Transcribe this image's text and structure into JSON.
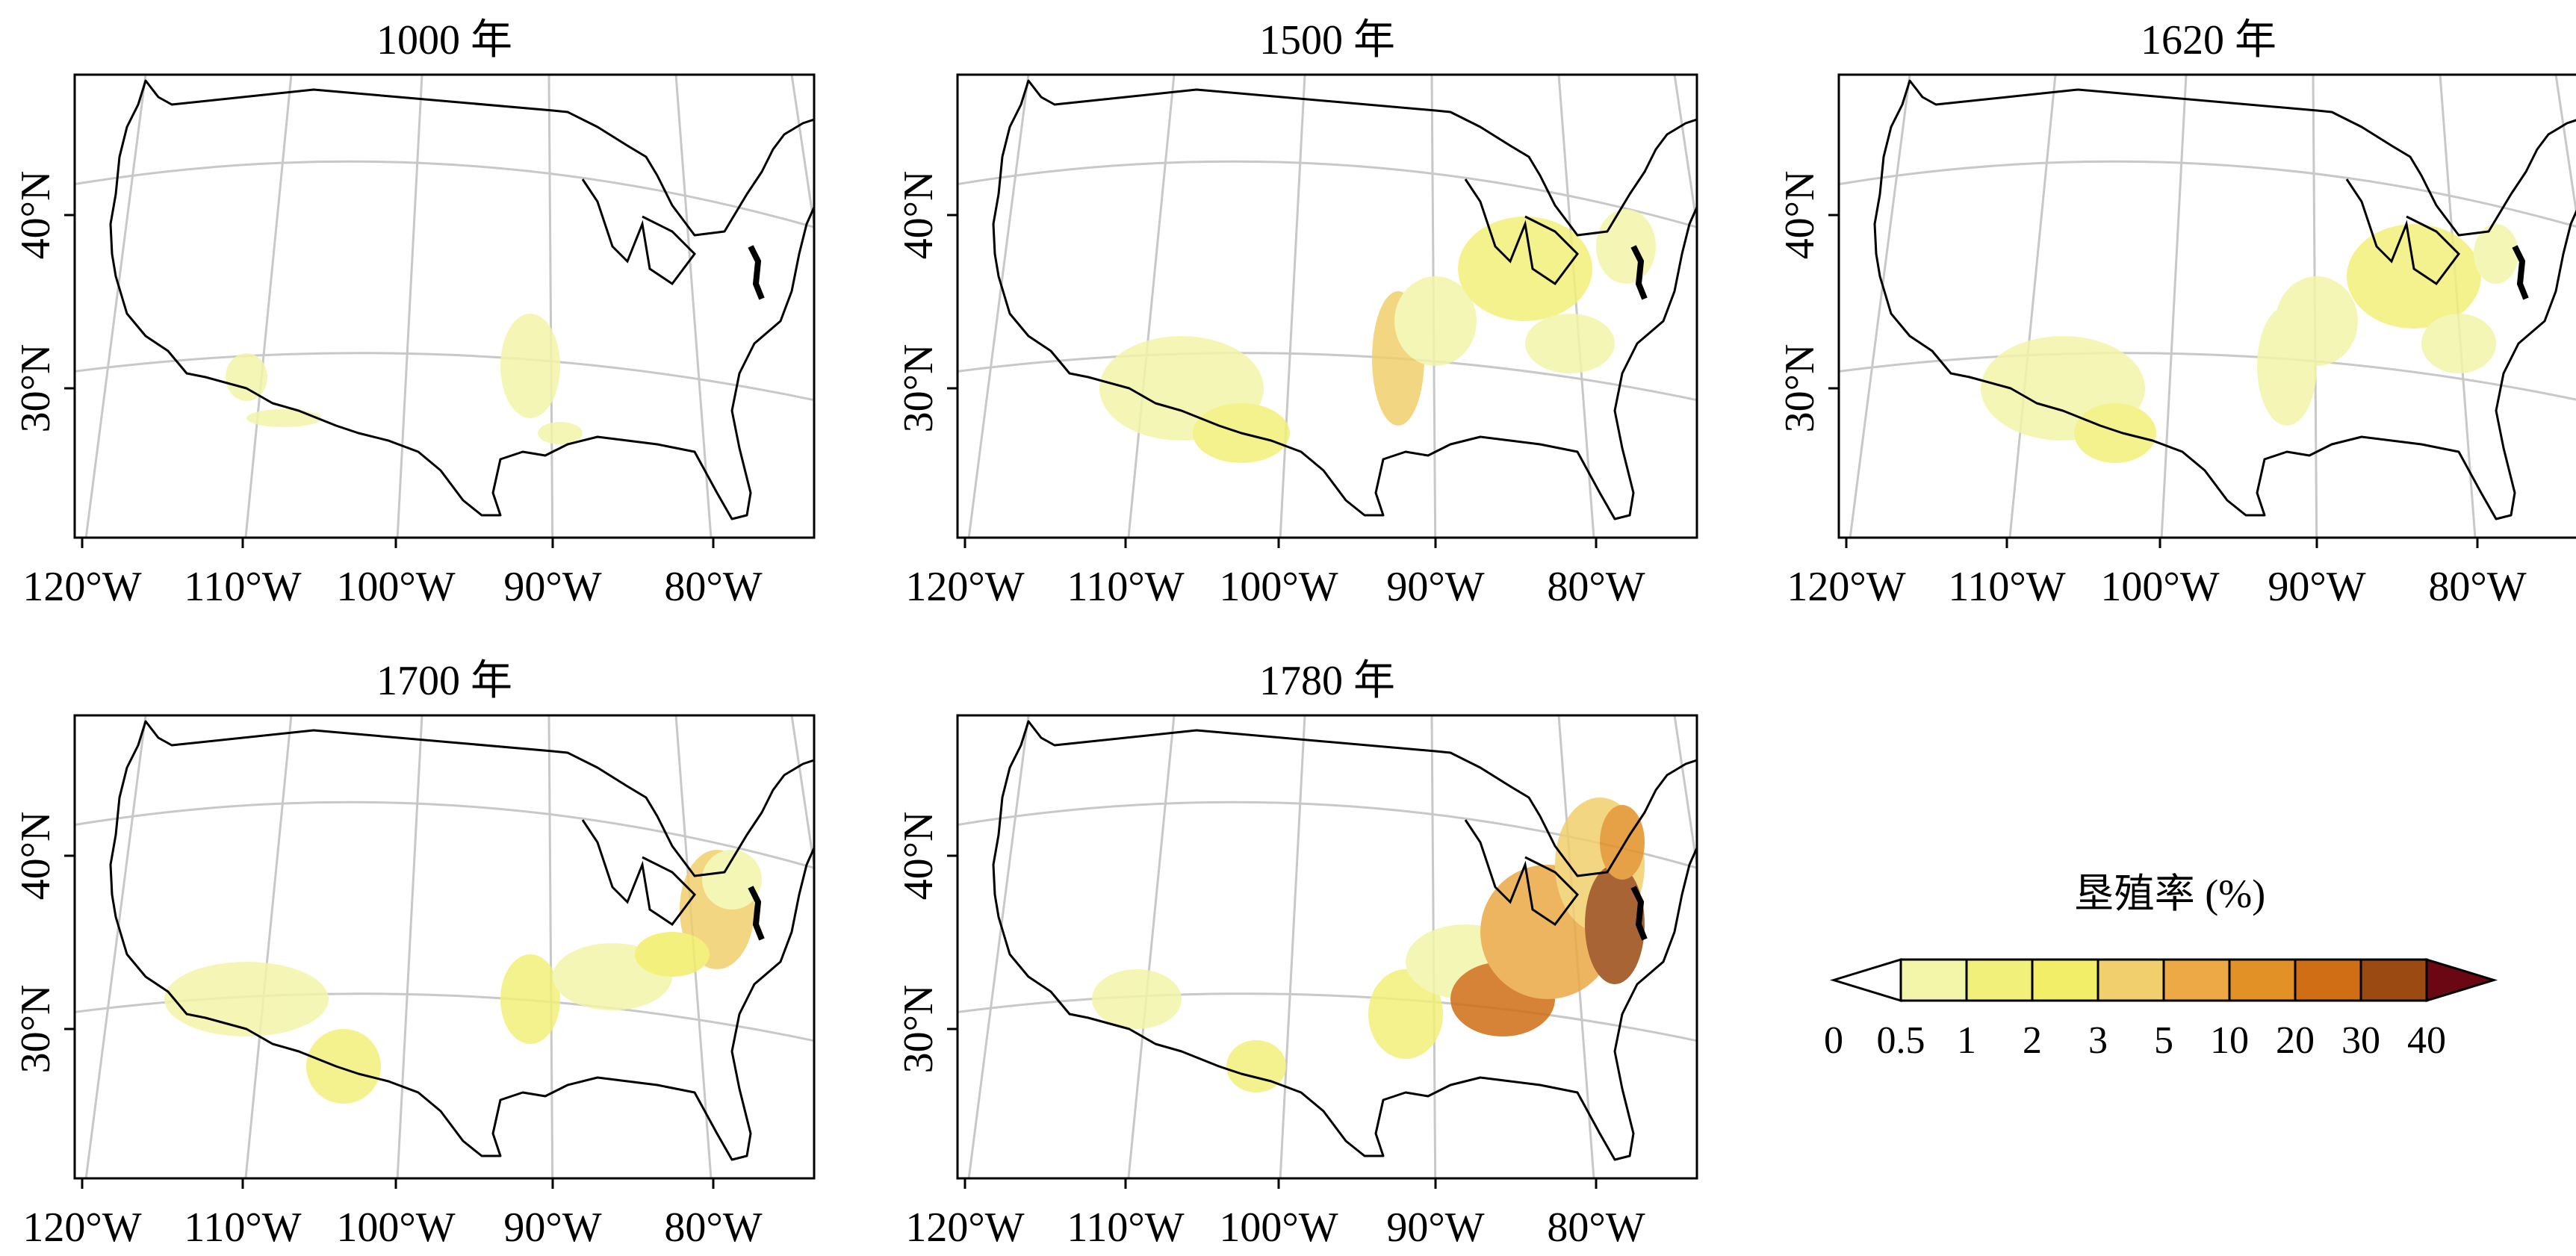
{
  "figure": {
    "panels": [
      {
        "id": "p1000",
        "title": "1000 年"
      },
      {
        "id": "p1500",
        "title": "1500 年"
      },
      {
        "id": "p1620",
        "title": "1620 年"
      },
      {
        "id": "p1700",
        "title": "1700 年"
      },
      {
        "id": "p1780",
        "title": "1780 年"
      }
    ],
    "lon_ticks": [
      "120°W",
      "110°W",
      "100°W",
      "90°W",
      "80°W"
    ],
    "lat_ticks": [
      "40°N",
      "30°N"
    ],
    "legend": {
      "title": "垦殖率 (%)",
      "labels": [
        "0",
        "0.5",
        "1",
        "2",
        "3",
        "5",
        "10",
        "20",
        "30",
        "40"
      ],
      "colors": [
        "#ffffff",
        "#f3f5a9",
        "#f1f07a",
        "#f3ee68",
        "#f1cf6c",
        "#eca946",
        "#e29127",
        "#d06e16",
        "#9b4a12",
        "#6b0712"
      ]
    }
  }
}
